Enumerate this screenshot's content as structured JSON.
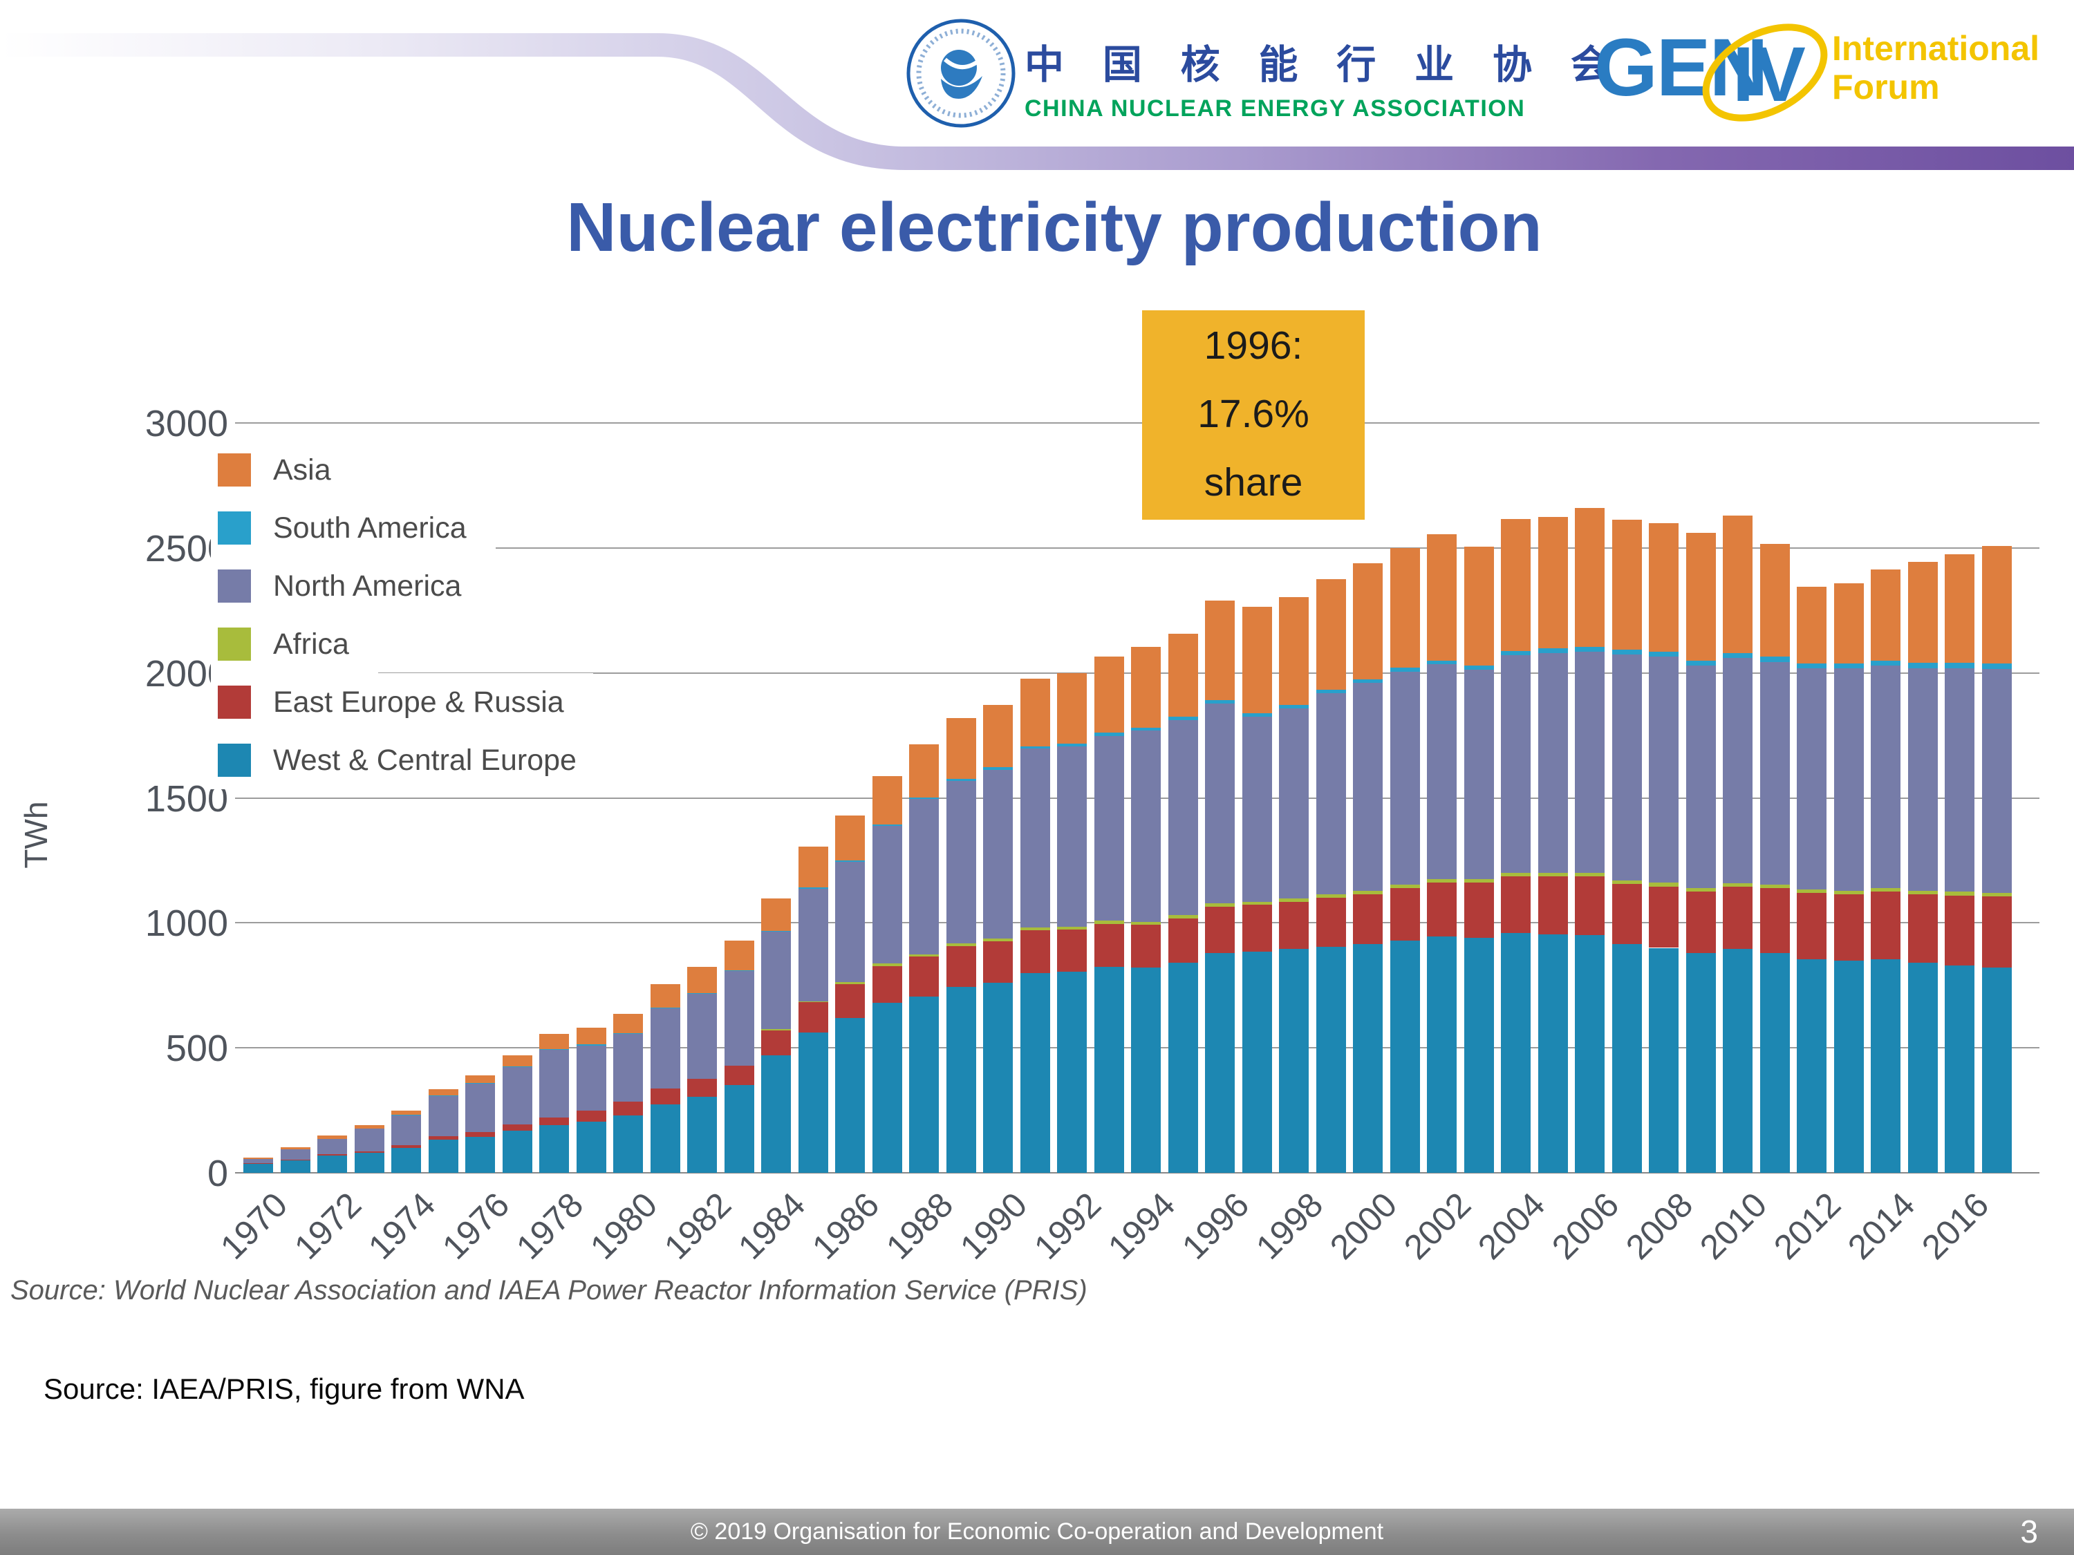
{
  "header": {
    "cnea": {
      "chinese_name": "中 国 核 能 行 业 协 会",
      "english_name": "CHINA NUCLEAR ENERGY ASSOCIATION"
    },
    "gen_iv": {
      "gen": "GEN",
      "iv": "IV",
      "line1": "International",
      "line2": "Forum"
    }
  },
  "title": "Nuclear electricity production",
  "callout": {
    "lines": [
      "1996:",
      "17.6%",
      "share"
    ],
    "bg_color": "#F0B32B",
    "text_color": "#1b1b1b"
  },
  "chart_data": {
    "type": "bar",
    "stacked": true,
    "title": "Nuclear electricity production",
    "xlabel": "",
    "ylabel": "TWh",
    "ylim": [
      0,
      3000
    ],
    "yticks": [
      0,
      500,
      1000,
      1500,
      2000,
      2500,
      3000
    ],
    "grid": "horizontal",
    "legend_position": "top-left",
    "x": [
      1970,
      1971,
      1972,
      1973,
      1974,
      1975,
      1976,
      1977,
      1978,
      1979,
      1980,
      1981,
      1982,
      1983,
      1984,
      1985,
      1986,
      1987,
      1988,
      1989,
      1990,
      1991,
      1992,
      1993,
      1994,
      1995,
      1996,
      1997,
      1998,
      1999,
      2000,
      2001,
      2002,
      2003,
      2004,
      2005,
      2006,
      2007,
      2008,
      2009,
      2010,
      2011,
      2012,
      2013,
      2014,
      2015,
      2016,
      2017
    ],
    "xtick_labels": [
      "1970",
      "1972",
      "1974",
      "1976",
      "1978",
      "1980",
      "1982",
      "1984",
      "1986",
      "1988",
      "1990",
      "1992",
      "1994",
      "1996",
      "1998",
      "2000",
      "2002",
      "2004",
      "2006",
      "2008",
      "2010",
      "2012",
      "2014",
      "2016"
    ],
    "stack_order": "bottom-to-top",
    "series": [
      {
        "name": "West & Central Europe",
        "color": "#1D87B2",
        "values": [
          38,
          50,
          70,
          80,
          100,
          132,
          145,
          170,
          190,
          205,
          230,
          275,
          305,
          350,
          470,
          560,
          620,
          680,
          705,
          745,
          760,
          800,
          805,
          825,
          820,
          840,
          880,
          885,
          895,
          905,
          915,
          930,
          945,
          940,
          960,
          955,
          950,
          915,
          900,
          880,
          895,
          880,
          855,
          850,
          855,
          840,
          830,
          820
        ]
      },
      {
        "name": "East Europe & Russia",
        "color": "#B23B38",
        "values": [
          2,
          3,
          4,
          6,
          10,
          15,
          18,
          24,
          32,
          45,
          55,
          62,
          70,
          78,
          100,
          122,
          135,
          148,
          160,
          162,
          166,
          170,
          168,
          170,
          172,
          178,
          185,
          187,
          190,
          195,
          200,
          210,
          215,
          220,
          225,
          230,
          235,
          240,
          245,
          245,
          250,
          260,
          265,
          265,
          270,
          275,
          280,
          285
        ]
      },
      {
        "name": "Africa",
        "color": "#A8BC3C",
        "values": [
          0,
          0,
          0,
          0,
          0,
          0,
          0,
          0,
          0,
          0,
          0,
          0,
          0,
          0,
          4,
          5,
          8,
          9,
          10,
          11,
          12,
          12,
          12,
          13,
          13,
          13,
          13,
          13,
          13,
          14,
          14,
          14,
          14,
          14,
          15,
          15,
          15,
          15,
          15,
          14,
          14,
          14,
          13,
          13,
          14,
          13,
          14,
          15
        ]
      },
      {
        "name": "North America",
        "color": "#767CA8",
        "values": [
          16,
          40,
          62,
          90,
          120,
          160,
          195,
          230,
          270,
          260,
          270,
          320,
          342,
          380,
          390,
          450,
          480,
          550,
          620,
          650,
          675,
          715,
          720,
          740,
          765,
          780,
          800,
          740,
          760,
          805,
          830,
          850,
          860,
          840,
          870,
          880,
          885,
          905,
          905,
          890,
          900,
          890,
          885,
          890,
          890,
          890,
          895,
          895
        ]
      },
      {
        "name": "South America",
        "color": "#29A0CB",
        "values": [
          0,
          0,
          0,
          0,
          1,
          2,
          2,
          3,
          3,
          3,
          3,
          3,
          3,
          3,
          4,
          6,
          6,
          6,
          7,
          9,
          10,
          10,
          11,
          12,
          12,
          13,
          14,
          15,
          15,
          15,
          15,
          16,
          16,
          16,
          17,
          18,
          19,
          19,
          20,
          20,
          21,
          21,
          21,
          21,
          21,
          22,
          22,
          22
        ]
      },
      {
        "name": "Asia",
        "color": "#DE7E3E",
        "values": [
          4,
          8,
          12,
          14,
          19,
          26,
          30,
          43,
          60,
          67,
          77,
          95,
          105,
          119,
          130,
          163,
          181,
          195,
          212,
          241,
          249,
          269,
          282,
          306,
          322,
          332,
          398,
          425,
          430,
          440,
          465,
          480,
          505,
          475,
          530,
          525,
          555,
          520,
          515,
          510,
          550,
          450,
          305,
          320,
          365,
          405,
          435,
          470
        ]
      }
    ],
    "legend_top_to_bottom": [
      {
        "label": "Asia",
        "color": "#DE7E3E"
      },
      {
        "label": "South America",
        "color": "#29A0CB"
      },
      {
        "label": "North America",
        "color": "#767CA8"
      },
      {
        "label": "Africa",
        "color": "#A8BC3C"
      },
      {
        "label": "East Europe & Russia",
        "color": "#B23B38"
      },
      {
        "label": "West & Central Europe",
        "color": "#1D87B2"
      }
    ]
  },
  "sources": {
    "figure_source": "Source: World Nuclear Association and IAEA Power Reactor Information Service (PRIS)",
    "slide_source": "Source: IAEA/PRIS, figure from WNA"
  },
  "footer": {
    "copyright": "© 2019 Organisation for Economic Co-operation and Development",
    "page_number": "3"
  },
  "colors": {
    "title_blue": "#3A5BA9",
    "ribbon_purple": "#6D4FA0",
    "cnea_blue": "#2B4B9E",
    "cnea_green": "#00A35B",
    "gif_blue": "#2A7CC2",
    "gif_yellow": "#F3C400",
    "callout_yellow": "#F0B32B"
  }
}
